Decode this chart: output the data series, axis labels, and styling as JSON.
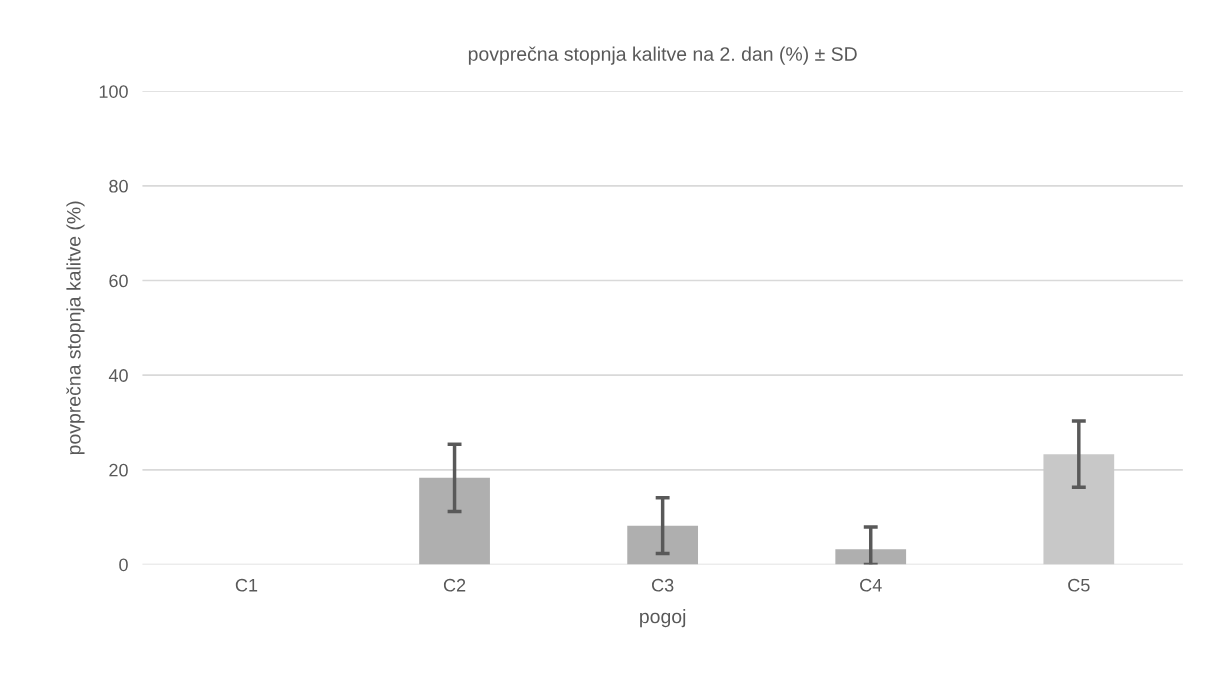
{
  "chart_data": {
    "type": "bar",
    "title": "povprečna stopnja kalitve na 2. dan (%) ± SD",
    "xlabel": "pogoj",
    "ylabel": "povprečna stopnja kalitve (%)",
    "categories": [
      "C1",
      "C2",
      "C3",
      "C4",
      "C5"
    ],
    "values": [
      0,
      18.3,
      8.2,
      3.2,
      23.3
    ],
    "errors": [
      null,
      7.1,
      5.9,
      [
        0,
        7.9
      ],
      7.0
    ],
    "colors": [
      "#afafaf",
      "#afafaf",
      "#afafaf",
      "#afafaf",
      "#c8c8c8"
    ],
    "ylim": [
      0,
      100
    ],
    "yticks": [
      0,
      20,
      40,
      60,
      80,
      100
    ],
    "grid": "y",
    "legend": false
  }
}
